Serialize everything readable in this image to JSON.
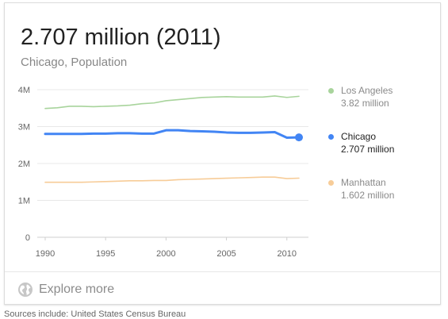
{
  "headline": "2.707 million (2011)",
  "subtitle": "Chicago, Population",
  "explore_label": "Explore more",
  "sources_text": "Sources include: United States Census Bureau",
  "colors": {
    "los_angeles": "#a8d49c",
    "chicago": "#4285f4",
    "manhattan": "#f7cc98",
    "grid": "#e8e8e8"
  },
  "legend": [
    {
      "name": "Los Angeles",
      "value": "3.82 million",
      "state": "dim"
    },
    {
      "name": "Chicago",
      "value": "2.707 million",
      "state": "active"
    },
    {
      "name": "Manhattan",
      "value": "1.602 million",
      "state": "dim"
    }
  ],
  "chart_data": {
    "type": "line",
    "xlabel": "",
    "ylabel": "",
    "xlim": [
      1990,
      2011
    ],
    "ylim": [
      0,
      4
    ],
    "x_ticks": [
      "1990",
      "1995",
      "2000",
      "2005",
      "2010"
    ],
    "y_ticks": [
      "0",
      "1M",
      "2M",
      "3M",
      "4M"
    ],
    "grid": true,
    "legend_position": "right",
    "x": [
      1990,
      1991,
      1992,
      1993,
      1994,
      1995,
      1996,
      1997,
      1998,
      1999,
      2000,
      2001,
      2002,
      2003,
      2004,
      2005,
      2006,
      2007,
      2008,
      2009,
      2010,
      2011
    ],
    "series": [
      {
        "name": "Los Angeles",
        "values": [
          3.49,
          3.51,
          3.55,
          3.55,
          3.54,
          3.55,
          3.56,
          3.58,
          3.62,
          3.64,
          3.7,
          3.73,
          3.76,
          3.79,
          3.8,
          3.81,
          3.8,
          3.8,
          3.8,
          3.83,
          3.79,
          3.82
        ]
      },
      {
        "name": "Chicago",
        "values": [
          2.8,
          2.8,
          2.8,
          2.8,
          2.81,
          2.81,
          2.82,
          2.82,
          2.81,
          2.81,
          2.9,
          2.9,
          2.88,
          2.87,
          2.86,
          2.84,
          2.83,
          2.83,
          2.84,
          2.85,
          2.7,
          2.707
        ]
      },
      {
        "name": "Manhattan",
        "values": [
          1.49,
          1.49,
          1.49,
          1.49,
          1.5,
          1.51,
          1.52,
          1.53,
          1.53,
          1.54,
          1.54,
          1.56,
          1.57,
          1.58,
          1.59,
          1.6,
          1.61,
          1.62,
          1.63,
          1.63,
          1.59,
          1.602
        ]
      }
    ]
  }
}
